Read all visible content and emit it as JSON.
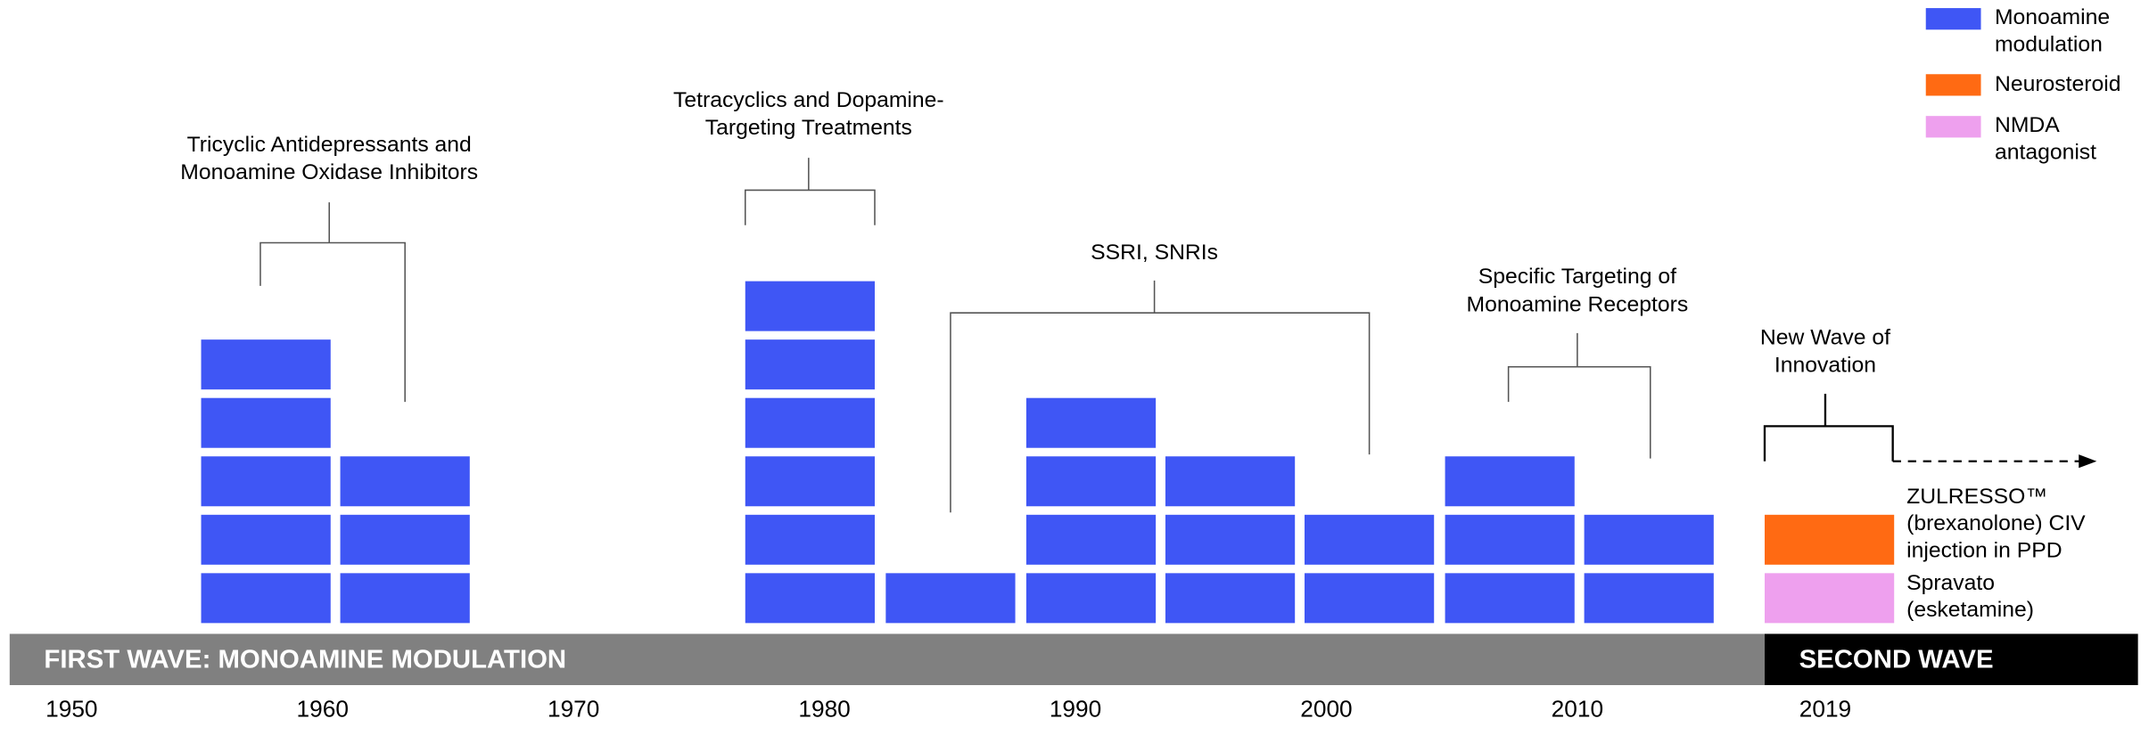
{
  "chart_data": {
    "type": "bar",
    "stacked": true,
    "categories": [
      null,
      null,
      null,
      null,
      null,
      null,
      null,
      null,
      null,
      null
    ],
    "series": [
      {
        "name": "Monoamine modulation",
        "color": "#3f56f5",
        "values": [
          5,
          3,
          6,
          1,
          4,
          3,
          2,
          3,
          2,
          0
        ]
      },
      {
        "name": "NMDA antagonist",
        "color": "#eea0ee",
        "values": [
          0,
          0,
          0,
          0,
          0,
          0,
          0,
          0,
          0,
          1
        ]
      },
      {
        "name": "Neurosteroid",
        "color": "#ff6a13",
        "values": [
          0,
          0,
          0,
          0,
          0,
          0,
          0,
          0,
          0,
          1
        ]
      }
    ],
    "legend_order": [
      "Monoamine modulation",
      "Neurosteroid",
      "NMDA antagonist"
    ],
    "xticks": [
      1950,
      1960,
      1970,
      1980,
      1990,
      2000,
      2010,
      2019
    ],
    "annotations": [
      {
        "lines": [
          "Tricyclic Antidepressants and",
          "Monoamine Oxidase Inhibitors"
        ]
      },
      {
        "lines": [
          "Tetracyclics and Dopamine-",
          "Targeting Treatments"
        ]
      },
      {
        "lines": [
          "SSRI, SNRIs"
        ]
      },
      {
        "lines": [
          "Specific Targeting of",
          "Monoamine Receptors"
        ]
      },
      {
        "lines": [
          "New Wave of",
          "Innovation"
        ]
      }
    ],
    "block_labels": [
      {
        "lines": [
          "ZULRESSO™",
          "(brexanolone) CIV",
          "injection in PPD"
        ]
      },
      {
        "lines": [
          "Spravato",
          "(esketamine)"
        ]
      }
    ],
    "bands": [
      "FIRST WAVE:  MONOAMINE MODULATION",
      "SECOND WAVE"
    ]
  }
}
